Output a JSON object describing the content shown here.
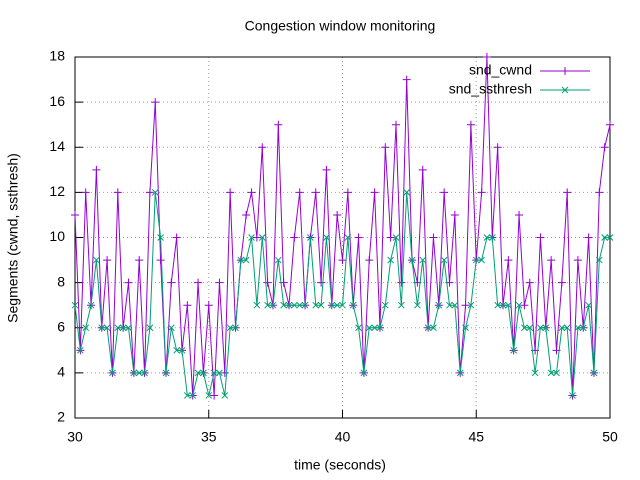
{
  "chart_data": {
    "type": "line",
    "title": "Congestion window monitoring",
    "x_label": "time (seconds)",
    "y_label": "Segments (cwnd, ssthresh)",
    "x": [
      30,
      30.2,
      30.4,
      30.6,
      30.8,
      31,
      31.2,
      31.4,
      31.6,
      31.8,
      32,
      32.2,
      32.4,
      32.6,
      32.8,
      33,
      33.2,
      33.4,
      33.6,
      33.8,
      34,
      34.2,
      34.4,
      34.6,
      34.8,
      35,
      35.2,
      35.4,
      35.6,
      35.8,
      36,
      36.2,
      36.4,
      36.6,
      36.8,
      37,
      37.2,
      37.4,
      37.6,
      37.8,
      38,
      38.2,
      38.4,
      38.6,
      38.8,
      39,
      39.2,
      39.4,
      39.6,
      39.8,
      40,
      40.2,
      40.4,
      40.6,
      40.8,
      41,
      41.2,
      41.4,
      41.6,
      41.8,
      42,
      42.2,
      42.4,
      42.6,
      42.8,
      43,
      43.2,
      43.4,
      43.6,
      43.8,
      44,
      44.2,
      44.4,
      44.6,
      44.8,
      45,
      45.2,
      45.4,
      45.6,
      45.8,
      46,
      46.2,
      46.4,
      46.6,
      46.8,
      47,
      47.2,
      47.4,
      47.6,
      47.8,
      48,
      48.2,
      48.4,
      48.6,
      48.8,
      49,
      49.2,
      49.4,
      49.6,
      49.8,
      50
    ],
    "series": [
      {
        "name": "snd_cwnd",
        "color": "#9400d3",
        "marker": "plus",
        "values": [
          11,
          5,
          12,
          7,
          13,
          6,
          9,
          4,
          12,
          6,
          8,
          4,
          9,
          4,
          12,
          16,
          9,
          4,
          8,
          10,
          5,
          7,
          3,
          8,
          4,
          7,
          3,
          8,
          4,
          12,
          6,
          9,
          11,
          12,
          10,
          14,
          8,
          7,
          15,
          8,
          7,
          10,
          12,
          7,
          10,
          12,
          8,
          13,
          7,
          11,
          9,
          12,
          7,
          10,
          4,
          9,
          12,
          6,
          14,
          10,
          15,
          8,
          17,
          9,
          8,
          13,
          6,
          10,
          7,
          12,
          8,
          11,
          4,
          7,
          15,
          9,
          12,
          18,
          10,
          14,
          7,
          9,
          5,
          11,
          7,
          8,
          5,
          10,
          6,
          9,
          5,
          8,
          12,
          3,
          9,
          6,
          10,
          4,
          12,
          14,
          15
        ]
      },
      {
        "name": "snd_ssthresh",
        "color": "#009e73",
        "marker": "cross",
        "values": [
          7,
          5,
          6,
          7,
          9,
          6,
          6,
          4,
          6,
          6,
          6,
          4,
          4,
          4,
          6,
          12,
          10,
          4,
          6,
          5,
          5,
          3,
          3,
          4,
          4,
          3,
          4,
          4,
          3,
          6,
          6,
          9,
          9,
          10,
          7,
          10,
          7,
          7,
          9,
          7,
          7,
          7,
          7,
          7,
          10,
          7,
          7,
          10,
          7,
          7,
          7,
          10,
          7,
          6,
          4,
          6,
          6,
          6,
          7,
          9,
          10,
          7,
          12,
          9,
          7,
          9,
          6,
          6,
          7,
          9,
          7,
          7,
          4,
          6,
          7,
          9,
          9,
          10,
          10,
          7,
          7,
          7,
          5,
          7,
          6,
          6,
          4,
          6,
          6,
          4,
          4,
          6,
          6,
          3,
          6,
          6,
          7,
          4,
          9,
          10,
          10
        ]
      }
    ],
    "xlim": [
      30,
      50
    ],
    "xticks": [
      30,
      35,
      40,
      45,
      50
    ],
    "ylim": [
      2,
      18
    ],
    "yticks": [
      2,
      4,
      6,
      8,
      10,
      12,
      14,
      16,
      18
    ],
    "grid": true,
    "legend": "top right"
  }
}
